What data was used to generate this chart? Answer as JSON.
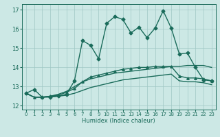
{
  "xlabel": "Humidex (Indice chaleur)",
  "xlim": [
    -0.5,
    23.5
  ],
  "ylim": [
    11.8,
    17.3
  ],
  "yticks": [
    12,
    13,
    14,
    15,
    16,
    17
  ],
  "xtick_labels": [
    "0",
    "1",
    "2",
    "3",
    "4",
    "5",
    "6",
    "7",
    "8",
    "9",
    "10",
    "11",
    "12",
    "13",
    "14",
    "15",
    "16",
    "17",
    "18",
    "19",
    "20",
    "21",
    "22",
    "23"
  ],
  "bg_color": "#cce8e5",
  "grid_color": "#a0c8c4",
  "line_color": "#1a6b5a",
  "line1": {
    "x": [
      0,
      1,
      2,
      3,
      4,
      5,
      6,
      7,
      8,
      9,
      10,
      11,
      12,
      13,
      14,
      15,
      16,
      17,
      18,
      19,
      20,
      21,
      22,
      23
    ],
    "y": [
      12.65,
      12.85,
      12.45,
      12.45,
      12.5,
      12.6,
      13.3,
      15.4,
      15.15,
      14.45,
      16.3,
      16.65,
      16.5,
      15.8,
      16.1,
      15.55,
      16.05,
      16.95,
      16.05,
      14.7,
      14.75,
      14.0,
      13.35,
      13.3
    ]
  },
  "line2": {
    "x": [
      0,
      1,
      2,
      3,
      4,
      5,
      6,
      7,
      8,
      9,
      10,
      11,
      12,
      13,
      14,
      15,
      16,
      17,
      18,
      19,
      20,
      21,
      22,
      23
    ],
    "y": [
      12.65,
      12.45,
      12.45,
      12.5,
      12.55,
      12.7,
      12.9,
      13.25,
      13.5,
      13.6,
      13.7,
      13.8,
      13.9,
      13.95,
      14.0,
      14.0,
      14.05,
      14.05,
      14.05,
      13.55,
      13.45,
      13.45,
      13.4,
      13.3
    ]
  },
  "line3": {
    "x": [
      0,
      1,
      2,
      3,
      4,
      5,
      6,
      7,
      8,
      9,
      10,
      11,
      12,
      13,
      14,
      15,
      16,
      17,
      18,
      19,
      20,
      21,
      22,
      23
    ],
    "y": [
      12.65,
      12.45,
      12.45,
      12.5,
      12.6,
      12.75,
      13.0,
      13.25,
      13.4,
      13.5,
      13.6,
      13.7,
      13.75,
      13.8,
      13.85,
      13.9,
      13.95,
      14.0,
      14.05,
      14.05,
      14.1,
      14.1,
      14.1,
      14.0
    ]
  },
  "line4": {
    "x": [
      0,
      1,
      2,
      3,
      4,
      5,
      6,
      7,
      8,
      9,
      10,
      11,
      12,
      13,
      14,
      15,
      16,
      17,
      18,
      19,
      20,
      21,
      22,
      23
    ],
    "y": [
      12.65,
      12.45,
      12.45,
      12.48,
      12.5,
      12.55,
      12.65,
      12.8,
      12.95,
      13.05,
      13.15,
      13.25,
      13.35,
      13.4,
      13.45,
      13.5,
      13.55,
      13.6,
      13.65,
      13.3,
      13.25,
      13.25,
      13.2,
      13.1
    ]
  }
}
